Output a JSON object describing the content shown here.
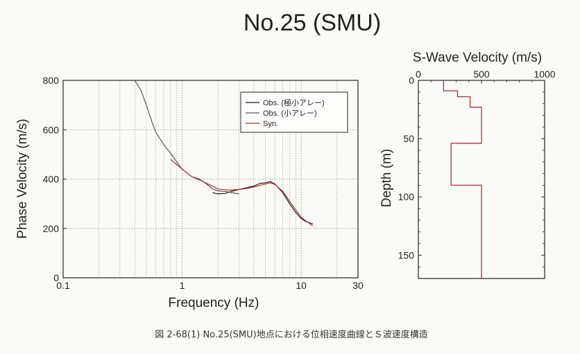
{
  "title": "No.25 (SMU)",
  "caption": "図 2-68(1) No.25(SMU)地点における位相速度曲線とＳ波速度構造",
  "chart_data": [
    {
      "type": "line",
      "xlabel": "Frequency (Hz)",
      "ylabel": "Phase Velocity (m/s)",
      "xscale": "log",
      "xlim": [
        0.1,
        30
      ],
      "ylim": [
        0,
        800
      ],
      "xticks": [
        0.1,
        1,
        10,
        30
      ],
      "xtick_labels": [
        "0.1",
        "1",
        "10",
        "30"
      ],
      "yticks": [
        0,
        200,
        400,
        600,
        800
      ],
      "ytick_labels": [
        "0",
        "200",
        "400",
        "600",
        "800"
      ],
      "grid": true,
      "legend_position": "top-right",
      "series": [
        {
          "name": "Obs. (極小アレー)",
          "color": "#1a1a1a",
          "x": [
            1.8,
            2.0,
            2.3,
            2.6,
            3.0,
            3.5,
            4.0,
            4.5,
            5.0,
            5.5,
            6.0,
            7.0,
            8.0,
            9.0,
            10.0,
            11.0,
            12.5
          ],
          "y": [
            345,
            340,
            342,
            350,
            358,
            365,
            372,
            382,
            385,
            390,
            380,
            345,
            300,
            265,
            240,
            228,
            218
          ]
        },
        {
          "name": "Obs. (小アレー)",
          "color": "#555555",
          "x": [
            0.4,
            0.45,
            0.5,
            0.55,
            0.6,
            0.7,
            0.8,
            0.9,
            1.0,
            1.2,
            1.4,
            1.6,
            1.8,
            2.0,
            2.3,
            2.6,
            3.0
          ],
          "y": [
            800,
            760,
            700,
            640,
            590,
            540,
            505,
            470,
            440,
            410,
            400,
            380,
            360,
            352,
            350,
            345,
            340
          ]
        },
        {
          "name": "Syn.",
          "color": "#b03030",
          "x": [
            0.8,
            1.0,
            1.2,
            1.5,
            2.0,
            2.5,
            3.0,
            3.5,
            4.0,
            5.0,
            5.5,
            6.0,
            7.0,
            8.0,
            9.0,
            10.0,
            11.0,
            12.5
          ],
          "y": [
            480,
            440,
            410,
            390,
            360,
            355,
            358,
            362,
            368,
            380,
            385,
            378,
            350,
            310,
            275,
            245,
            230,
            210
          ]
        }
      ]
    },
    {
      "type": "line",
      "title": "S-Wave Velocity (m/s)",
      "ylabel": "Depth (m)",
      "xlim": [
        0,
        1000
      ],
      "ylim": [
        0,
        170
      ],
      "xticks": [
        0,
        500,
        1000
      ],
      "xtick_labels": [
        "0",
        "500",
        "1000"
      ],
      "yticks": [
        0,
        50,
        100,
        150
      ],
      "ytick_labels": [
        "0",
        "50",
        "100",
        "150"
      ],
      "y_inverted": true,
      "x_axis_position": "top",
      "grid": false,
      "series": [
        {
          "name": "",
          "color": "#b03030",
          "profile": [
            {
              "velocity": 200,
              "top": 0,
              "bottom": 9
            },
            {
              "velocity": 310,
              "top": 9,
              "bottom": 14
            },
            {
              "velocity": 410,
              "top": 14,
              "bottom": 23
            },
            {
              "velocity": 500,
              "top": 23,
              "bottom": 54
            },
            {
              "velocity": 260,
              "top": 54,
              "bottom": 90
            },
            {
              "velocity": 500,
              "top": 90,
              "bottom": 170
            }
          ]
        }
      ]
    }
  ]
}
